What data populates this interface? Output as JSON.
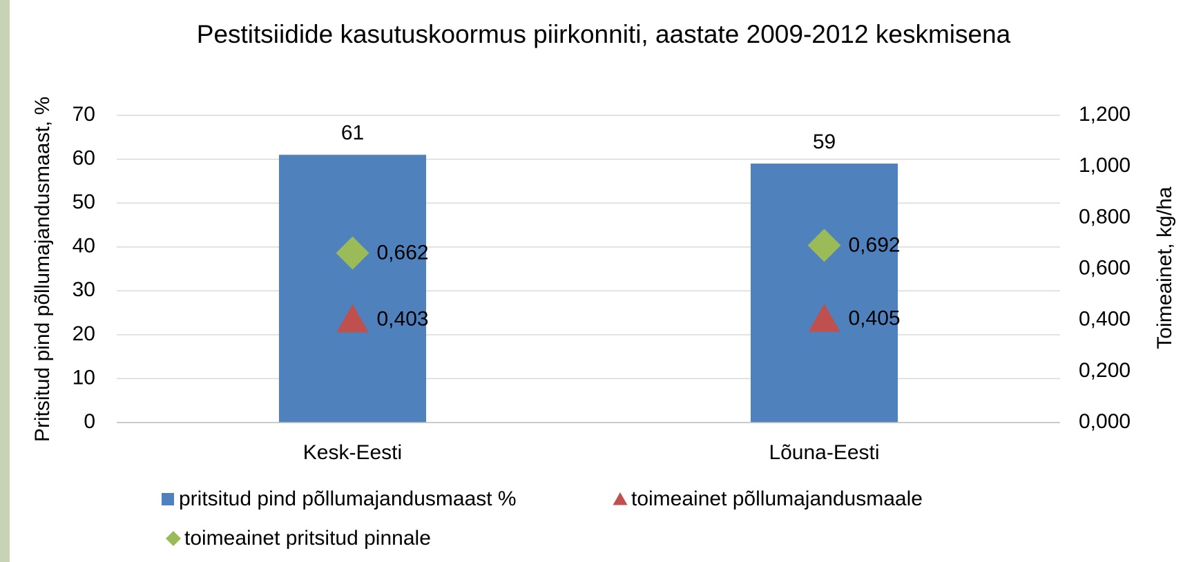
{
  "chart_data": {
    "type": "bar",
    "title": "Pestitsiidide kasutuskoormus piirkonniti, aastate 2009-2012 keskmisena",
    "y_label": "Pritsitud pind põllumajandusmaast, %",
    "y2_label": "Toimeainet, kg/ha",
    "categories": [
      "Kesk-Eesti",
      "Lõuna-Eesti"
    ],
    "series": [
      {
        "name": "pritsitud pind põllumajandusmaast %",
        "color": "#4f81bd",
        "marker": "bar",
        "values": [
          61,
          59
        ]
      },
      {
        "name": "toimeainet põllumajandusmaale",
        "color": "#c0504d",
        "marker": "triangle",
        "axis": "y2",
        "values": [
          0.403,
          0.405
        ],
        "value_labels": [
          "0,403",
          "0,405"
        ]
      },
      {
        "name": "toimeainet pritsitud pinnale",
        "color": "#9bbb59",
        "marker": "diamond",
        "axis": "y2",
        "values": [
          0.662,
          0.692
        ],
        "value_labels": [
          "0,662",
          "0,692"
        ]
      }
    ],
    "ylim": [
      0,
      70
    ],
    "yticks": [
      0,
      10,
      20,
      30,
      40,
      50,
      60,
      70
    ],
    "y2lim": [
      0,
      1.2
    ],
    "y2ticks": [
      {
        "value": 0,
        "label": "0,000"
      },
      {
        "value": 0.2,
        "label": "0,200"
      },
      {
        "value": 0.4,
        "label": "0,400"
      },
      {
        "value": 0.6,
        "label": "0,600"
      },
      {
        "value": 0.8,
        "label": "0,800"
      },
      {
        "value": 1.0,
        "label": "1,000"
      },
      {
        "value": 1.2,
        "label": "1,200"
      }
    ],
    "grid": true,
    "legend": "bottom"
  }
}
